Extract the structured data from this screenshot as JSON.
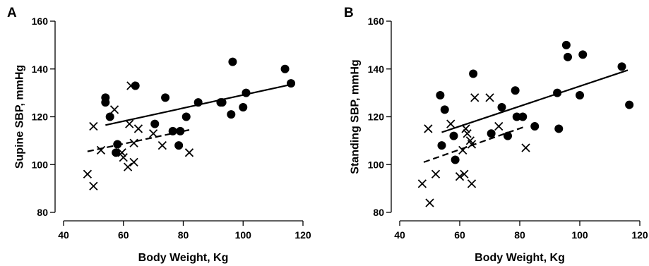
{
  "chart_data": [
    {
      "type": "scatter",
      "panel": "A",
      "title": "",
      "xlabel": "Body Weight, Kg",
      "ylabel": "Supine SBP, mmHg",
      "xlim": [
        40,
        120
      ],
      "ylim": [
        80,
        160
      ],
      "xticks": [
        40,
        60,
        80,
        100,
        120
      ],
      "yticks": [
        80,
        100,
        120,
        140,
        160
      ],
      "series": [
        {
          "marker": "filled-circle",
          "points": [
            [
              54,
              126
            ],
            [
              54,
              128
            ],
            [
              55.5,
              120
            ],
            [
              57.5,
              105
            ],
            [
              58,
              108.5
            ],
            [
              64,
              133
            ],
            [
              70.5,
              117
            ],
            [
              74,
              128
            ],
            [
              76.5,
              114
            ],
            [
              78.5,
              108
            ],
            [
              79,
              114
            ],
            [
              81,
              120
            ],
            [
              85,
              126
            ],
            [
              92.5,
              126
            ],
            [
              93,
              126
            ],
            [
              96,
              121
            ],
            [
              96.5,
              143
            ],
            [
              100,
              124
            ],
            [
              101,
              130
            ],
            [
              114,
              140
            ],
            [
              116,
              134
            ]
          ],
          "fit": {
            "style": "solid",
            "x": [
              54,
              116
            ],
            "y": [
              116.5,
              133.5
            ]
          }
        },
        {
          "marker": "cross",
          "points": [
            [
              48,
              96
            ],
            [
              50,
              116
            ],
            [
              50,
              91
            ],
            [
              52.5,
              106
            ],
            [
              57,
              123
            ],
            [
              59.5,
              105
            ],
            [
              60,
              103
            ],
            [
              61.5,
              99
            ],
            [
              62,
              117
            ],
            [
              62.5,
              133
            ],
            [
              63.5,
              101
            ],
            [
              63.5,
              109
            ],
            [
              65,
              115
            ],
            [
              70,
              113
            ],
            [
              73,
              108
            ],
            [
              82,
              105
            ]
          ],
          "fit": {
            "style": "dashed",
            "x": [
              48,
              82
            ],
            "y": [
              105.5,
              114.5
            ]
          }
        }
      ]
    },
    {
      "type": "scatter",
      "panel": "B",
      "title": "",
      "xlabel": "Body Weight, Kg",
      "ylabel": "Standing SBP, mmHg",
      "xlim": [
        40,
        120
      ],
      "ylim": [
        80,
        160
      ],
      "xticks": [
        40,
        60,
        80,
        100,
        120
      ],
      "yticks": [
        80,
        100,
        120,
        140,
        160
      ],
      "series": [
        {
          "marker": "filled-circle",
          "points": [
            [
              53.5,
              129
            ],
            [
              54,
              108
            ],
            [
              55,
              123
            ],
            [
              58,
              112
            ],
            [
              58.5,
              102
            ],
            [
              64.5,
              138
            ],
            [
              70.5,
              113
            ],
            [
              74,
              124
            ],
            [
              76,
              112
            ],
            [
              78.5,
              131
            ],
            [
              79,
              120
            ],
            [
              81,
              120
            ],
            [
              85,
              116
            ],
            [
              92.5,
              130
            ],
            [
              93,
              115
            ],
            [
              95.5,
              150
            ],
            [
              96,
              145
            ],
            [
              100,
              129
            ],
            [
              101,
              146
            ],
            [
              114,
              141
            ],
            [
              116.5,
              125
            ]
          ],
          "fit": {
            "style": "solid",
            "x": [
              54,
              116
            ],
            "y": [
              113.5,
              139.5
            ]
          }
        },
        {
          "marker": "cross",
          "points": [
            [
              47.5,
              92
            ],
            [
              49.5,
              115
            ],
            [
              50,
              84
            ],
            [
              52,
              96
            ],
            [
              57,
              117
            ],
            [
              60,
              95
            ],
            [
              61,
              106
            ],
            [
              61.5,
              96
            ],
            [
              62,
              115
            ],
            [
              62.5,
              113
            ],
            [
              63.5,
              110
            ],
            [
              64,
              108.5
            ],
            [
              64,
              92
            ],
            [
              65,
              128
            ],
            [
              70,
              128
            ],
            [
              73,
              116
            ],
            [
              82,
              107
            ]
          ],
          "fit": {
            "style": "dashed",
            "x": [
              48,
              82
            ],
            "y": [
              101,
              116
            ]
          }
        }
      ]
    }
  ]
}
